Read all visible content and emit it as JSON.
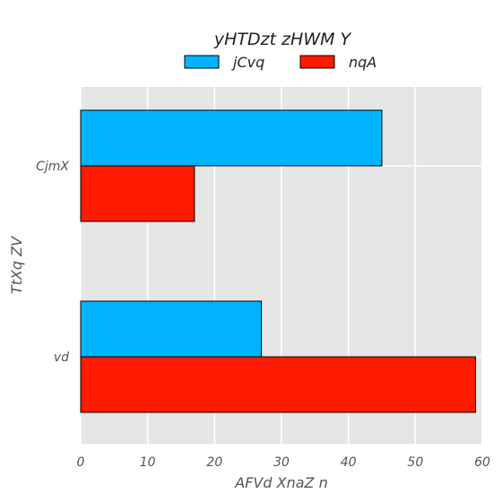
{
  "chart_data": {
    "type": "bar",
    "orientation": "horizontal",
    "title": "yHTDzt zHWM Y",
    "xlabel": "AFVd XnaZ n",
    "ylabel": "TtXq ZV",
    "categories": [
      "CjmX",
      "vd"
    ],
    "series": [
      {
        "name": "jCvq",
        "values": [
          45,
          27
        ],
        "color": "#00b4ff"
      },
      {
        "name": "nqA",
        "values": [
          17,
          59
        ],
        "color": "#ff1a00"
      }
    ],
    "xlim": [
      0,
      60
    ],
    "xticks": [
      "0",
      "10",
      "20",
      "30",
      "40",
      "50",
      "60"
    ],
    "grid": true,
    "legend_position": "top"
  }
}
